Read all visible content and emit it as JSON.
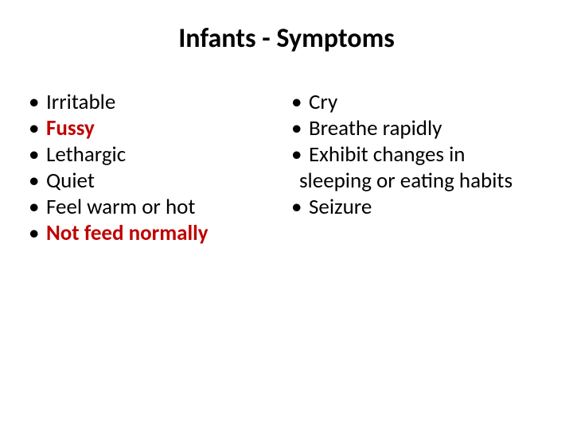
{
  "title": {
    "text": "Infants - Symptoms",
    "fontsize": 34,
    "color": "#000000"
  },
  "body_fontsize": 27,
  "emphasis_color": "#c00000",
  "text_color": "#000000",
  "columns": {
    "left": [
      {
        "text": "Irritable",
        "emphasis": false
      },
      {
        "text": "Fussy",
        "emphasis": true
      },
      {
        "text": "Lethargic",
        "emphasis": false
      },
      {
        "text": "Quiet",
        "emphasis": false
      },
      {
        "text": "Feel warm or hot",
        "emphasis": false
      },
      {
        "text": "Not feed normally",
        "emphasis": true
      }
    ],
    "right": [
      {
        "text": "Cry",
        "emphasis": false
      },
      {
        "text": "Breathe rapidly",
        "emphasis": false
      },
      {
        "text": "Exhibit changes in",
        "emphasis": false,
        "continuation": "sleeping or eating habits"
      },
      {
        "text": "Seizure",
        "emphasis": false
      }
    ]
  }
}
